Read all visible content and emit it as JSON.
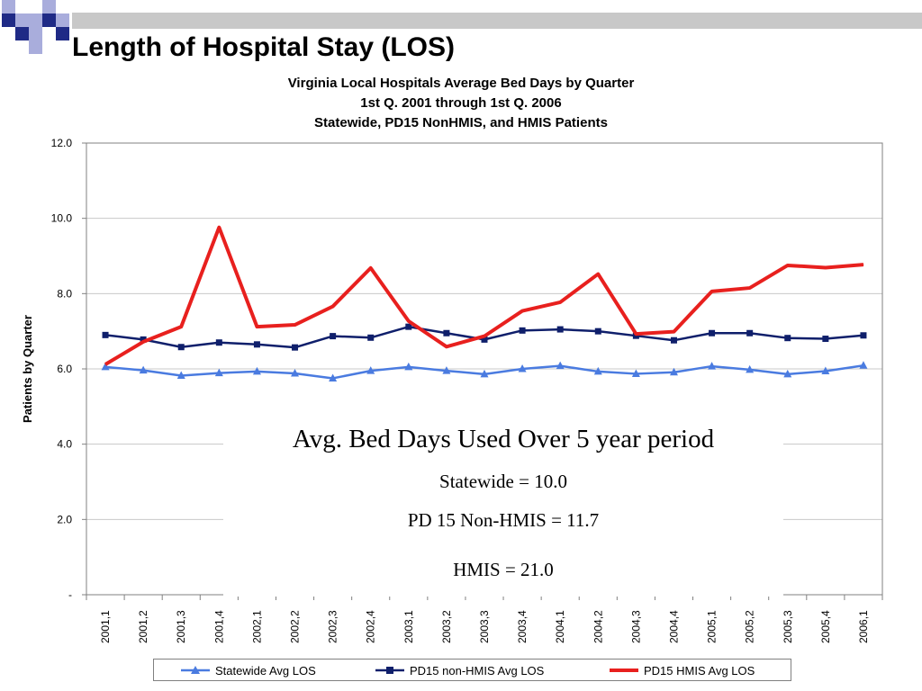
{
  "slide": {
    "title": "Length of Hospital Stay (LOS)",
    "decor_colors": {
      "dark_blue": "#1f2a86",
      "light_blue": "#a9addc",
      "gray": "#d0d0d0"
    }
  },
  "chart_data": {
    "type": "line",
    "title_lines": [
      "Virginia Local Hospitals Average Bed Days by Quarter",
      "1st Q. 2001 through 1st Q. 2006",
      "Statewide, PD15 NonHMIS, and HMIS Patients"
    ],
    "xlabel": "",
    "ylabel": "Patients by Quarter",
    "ylim": [
      0,
      12
    ],
    "y_ticks": [
      0,
      2,
      4,
      6,
      8,
      10,
      12
    ],
    "y_tick_labels": [
      "-",
      "2.0",
      "4.0",
      "6.0",
      "8.0",
      "10.0",
      "12.0"
    ],
    "grid": true,
    "legend_position": "bottom",
    "categories": [
      "2001,1",
      "2001,2",
      "2001,3",
      "2001,4",
      "2002,1",
      "2002,2",
      "2002,3",
      "2002,4",
      "2003,1",
      "2003,2",
      "2003,3",
      "2003,4",
      "2004,1",
      "2004,2",
      "2004,3",
      "2004,4",
      "2005,1",
      "2005,2",
      "2005,3",
      "2005,4",
      "2006,1"
    ],
    "series": [
      {
        "name": "Statewide Avg LOS",
        "color": "#4a7be0",
        "marker": "triangle",
        "values": [
          6.05,
          5.96,
          5.82,
          5.89,
          5.93,
          5.88,
          5.75,
          5.95,
          6.05,
          5.95,
          5.86,
          6.0,
          6.08,
          5.93,
          5.87,
          5.91,
          6.07,
          5.98,
          5.86,
          5.94,
          6.09
        ]
      },
      {
        "name": "PD15 non-HMIS Avg LOS",
        "color": "#0f1f6b",
        "marker": "square",
        "values": [
          6.9,
          6.78,
          6.58,
          6.7,
          6.65,
          6.57,
          6.87,
          6.83,
          7.12,
          6.95,
          6.78,
          7.02,
          7.05,
          7.0,
          6.88,
          6.76,
          6.95,
          6.95,
          6.82,
          6.8,
          6.89
        ]
      },
      {
        "name": "PD15 HMIS Avg LOS",
        "color": "#e8201e",
        "marker": "none",
        "values": [
          6.12,
          6.72,
          7.12,
          9.76,
          7.12,
          7.17,
          7.66,
          8.68,
          7.27,
          6.59,
          6.87,
          7.54,
          7.77,
          8.52,
          6.93,
          6.99,
          8.06,
          8.15,
          8.75,
          8.69,
          8.77
        ]
      }
    ],
    "annotation": {
      "heading": "Avg. Bed Days Used Over 5 year period",
      "lines": [
        "Statewide = 10.0",
        "PD 15 Non-HMIS = 11.7",
        "HMIS = 21.0"
      ]
    }
  }
}
